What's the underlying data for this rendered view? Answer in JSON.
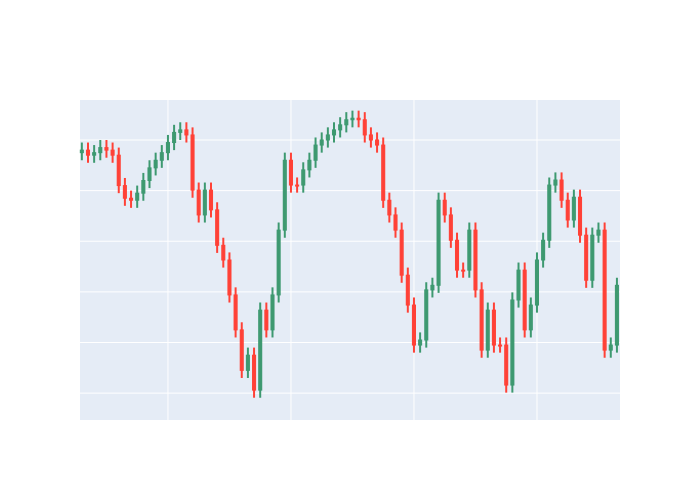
{
  "chart_data": {
    "type": "candlestick",
    "x": [
      0,
      1,
      2,
      3,
      4,
      5,
      6,
      7,
      8,
      9,
      10,
      11,
      12,
      13,
      14,
      15,
      16,
      17,
      18,
      19,
      20,
      21,
      22,
      23,
      24,
      25,
      26,
      27,
      28,
      29,
      30,
      31,
      32,
      33,
      34,
      35,
      36,
      37,
      38,
      39,
      40,
      41,
      42,
      43,
      44,
      45,
      46,
      47,
      48,
      49,
      50,
      51,
      52,
      53,
      54,
      55,
      56,
      57,
      58,
      59,
      60,
      61,
      62,
      63,
      64,
      65,
      66,
      67,
      68,
      69,
      70,
      71,
      72,
      73,
      74,
      75,
      76,
      77,
      78,
      79,
      80,
      81,
      82,
      83,
      84,
      85,
      86,
      87
    ],
    "open": [
      4.75,
      4.8,
      4.7,
      4.75,
      4.85,
      4.8,
      4.7,
      4.1,
      3.85,
      3.81,
      3.95,
      4.2,
      4.45,
      4.6,
      4.75,
      4.95,
      5.15,
      5.2,
      5.1,
      4.01,
      3.52,
      4.01,
      3.62,
      2.92,
      2.63,
      1.94,
      1.25,
      0.45,
      0.75,
      0.06,
      1.64,
      1.25,
      1.94,
      3.22,
      4.6,
      4.11,
      4.11,
      4.41,
      4.6,
      4.9,
      5.0,
      5.1,
      5.2,
      5.3,
      5.4,
      5.43,
      5.4,
      5.1,
      5.0,
      4.9,
      3.81,
      3.52,
      3.22,
      2.33,
      1.74,
      0.95,
      1.05,
      2.04,
      2.13,
      3.81,
      3.52,
      3.02,
      2.43,
      2.43,
      3.22,
      2.04,
      0.85,
      1.64,
      0.95,
      0.95,
      0.16,
      1.84,
      2.43,
      1.25,
      1.74,
      2.63,
      3.02,
      4.11,
      4.21,
      3.81,
      3.42,
      3.87,
      3.12,
      2.23,
      3.12,
      3.22,
      0.85,
      0.95
    ],
    "high": [
      4.95,
      4.95,
      4.9,
      5.0,
      5.0,
      4.95,
      4.85,
      4.25,
      4.0,
      4.1,
      4.35,
      4.6,
      4.75,
      4.9,
      5.1,
      5.3,
      5.35,
      5.35,
      5.25,
      4.16,
      4.16,
      4.16,
      3.77,
      3.07,
      2.78,
      2.09,
      1.4,
      0.9,
      0.9,
      1.79,
      1.79,
      2.09,
      3.37,
      4.75,
      4.75,
      4.26,
      4.56,
      4.75,
      5.05,
      5.15,
      5.25,
      5.35,
      5.45,
      5.55,
      5.58,
      5.58,
      5.55,
      5.25,
      5.15,
      5.05,
      3.96,
      3.67,
      3.37,
      2.48,
      1.89,
      1.2,
      2.19,
      2.28,
      3.96,
      3.96,
      3.67,
      3.17,
      2.58,
      3.37,
      3.37,
      2.19,
      1.79,
      1.79,
      1.1,
      1.1,
      1.99,
      2.58,
      2.58,
      1.89,
      2.78,
      3.17,
      4.26,
      4.36,
      4.36,
      3.96,
      4.02,
      4.02,
      3.27,
      3.27,
      3.37,
      3.37,
      1.1,
      2.28
    ],
    "low": [
      4.6,
      4.55,
      4.55,
      4.6,
      4.65,
      4.55,
      3.95,
      3.7,
      3.66,
      3.66,
      3.8,
      4.05,
      4.3,
      4.45,
      4.6,
      4.8,
      5.0,
      4.95,
      3.86,
      3.37,
      3.37,
      3.47,
      2.77,
      2.48,
      1.79,
      1.1,
      0.3,
      0.3,
      -0.09,
      -0.09,
      1.1,
      1.1,
      1.79,
      3.07,
      3.96,
      3.96,
      3.96,
      4.26,
      4.45,
      4.75,
      4.85,
      4.95,
      5.05,
      5.15,
      5.25,
      5.25,
      4.95,
      4.85,
      4.75,
      3.66,
      3.37,
      3.07,
      2.18,
      1.59,
      0.8,
      0.8,
      0.9,
      1.89,
      1.98,
      3.37,
      2.87,
      2.28,
      2.28,
      2.28,
      1.89,
      0.7,
      0.7,
      0.8,
      0.8,
      0.01,
      0.01,
      1.69,
      1.1,
      1.1,
      1.59,
      2.48,
      2.87,
      3.96,
      3.66,
      3.27,
      3.27,
      2.97,
      2.08,
      2.08,
      2.97,
      0.7,
      0.7,
      0.8
    ],
    "close": [
      4.8,
      4.7,
      4.75,
      4.85,
      4.8,
      4.7,
      4.1,
      3.85,
      3.81,
      3.95,
      4.2,
      4.45,
      4.6,
      4.75,
      4.95,
      5.15,
      5.2,
      5.1,
      4.01,
      3.52,
      4.01,
      3.62,
      2.92,
      2.63,
      1.94,
      1.25,
      0.45,
      0.75,
      0.06,
      1.64,
      1.25,
      1.94,
      3.22,
      4.6,
      4.11,
      4.11,
      4.41,
      4.6,
      4.9,
      5.0,
      5.1,
      5.2,
      5.3,
      5.4,
      5.43,
      5.4,
      5.1,
      5.0,
      4.9,
      3.81,
      3.52,
      3.22,
      2.33,
      1.74,
      0.95,
      1.05,
      2.04,
      2.13,
      3.81,
      3.52,
      3.02,
      2.43,
      2.43,
      3.22,
      2.04,
      0.85,
      1.64,
      0.95,
      0.95,
      0.16,
      1.84,
      2.43,
      1.25,
      1.74,
      2.63,
      3.02,
      4.11,
      4.21,
      3.81,
      3.42,
      3.87,
      3.12,
      2.23,
      3.12,
      3.22,
      0.85,
      0.95,
      2.13
    ],
    "increasing_color": "#3d9970",
    "decreasing_color": "#ff4136",
    "xlim": [
      -0.3,
      87.5
    ],
    "xticks": [
      14,
      34,
      54,
      74
    ],
    "ylim": [
      -0.53,
      5.79
    ],
    "yticks": [
      0,
      1,
      2,
      3,
      4,
      5
    ],
    "grid": true,
    "plot_background": "#e5ecf6"
  }
}
